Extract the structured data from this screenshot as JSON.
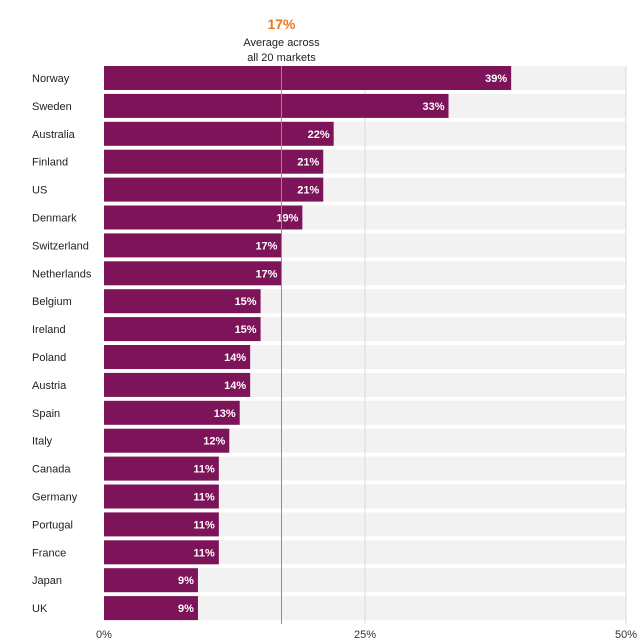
{
  "chart_data": {
    "type": "bar",
    "orientation": "horizontal",
    "categories": [
      "Norway",
      "Sweden",
      "Australia",
      "Finland",
      "US",
      "Denmark",
      "Switzerland",
      "Netherlands",
      "Belgium",
      "Ireland",
      "Poland",
      "Austria",
      "Spain",
      "Italy",
      "Canada",
      "Germany",
      "Portugal",
      "France",
      "Japan",
      "UK"
    ],
    "values": [
      39,
      33,
      22,
      21,
      21,
      19,
      17,
      17,
      15,
      15,
      14,
      14,
      13,
      12,
      11,
      11,
      11,
      11,
      9,
      9
    ],
    "value_labels": [
      "39%",
      "33%",
      "22%",
      "21%",
      "21%",
      "19%",
      "17%",
      "17%",
      "15%",
      "15%",
      "14%",
      "14%",
      "13%",
      "12%",
      "11%",
      "11%",
      "11%",
      "11%",
      "9%",
      "9%"
    ],
    "xlim": [
      0,
      50
    ],
    "xticks": [
      0,
      25,
      50
    ],
    "xtick_labels": [
      "0%",
      "25%",
      "50%"
    ],
    "grid": true,
    "bar_color": "#7d1358",
    "track_color": "#f2f2f2",
    "reference_line": {
      "value": 17,
      "value_label": "17%",
      "text_line_1": "Average across",
      "text_line_2": "all 20 markets",
      "color": "#e87722"
    }
  }
}
